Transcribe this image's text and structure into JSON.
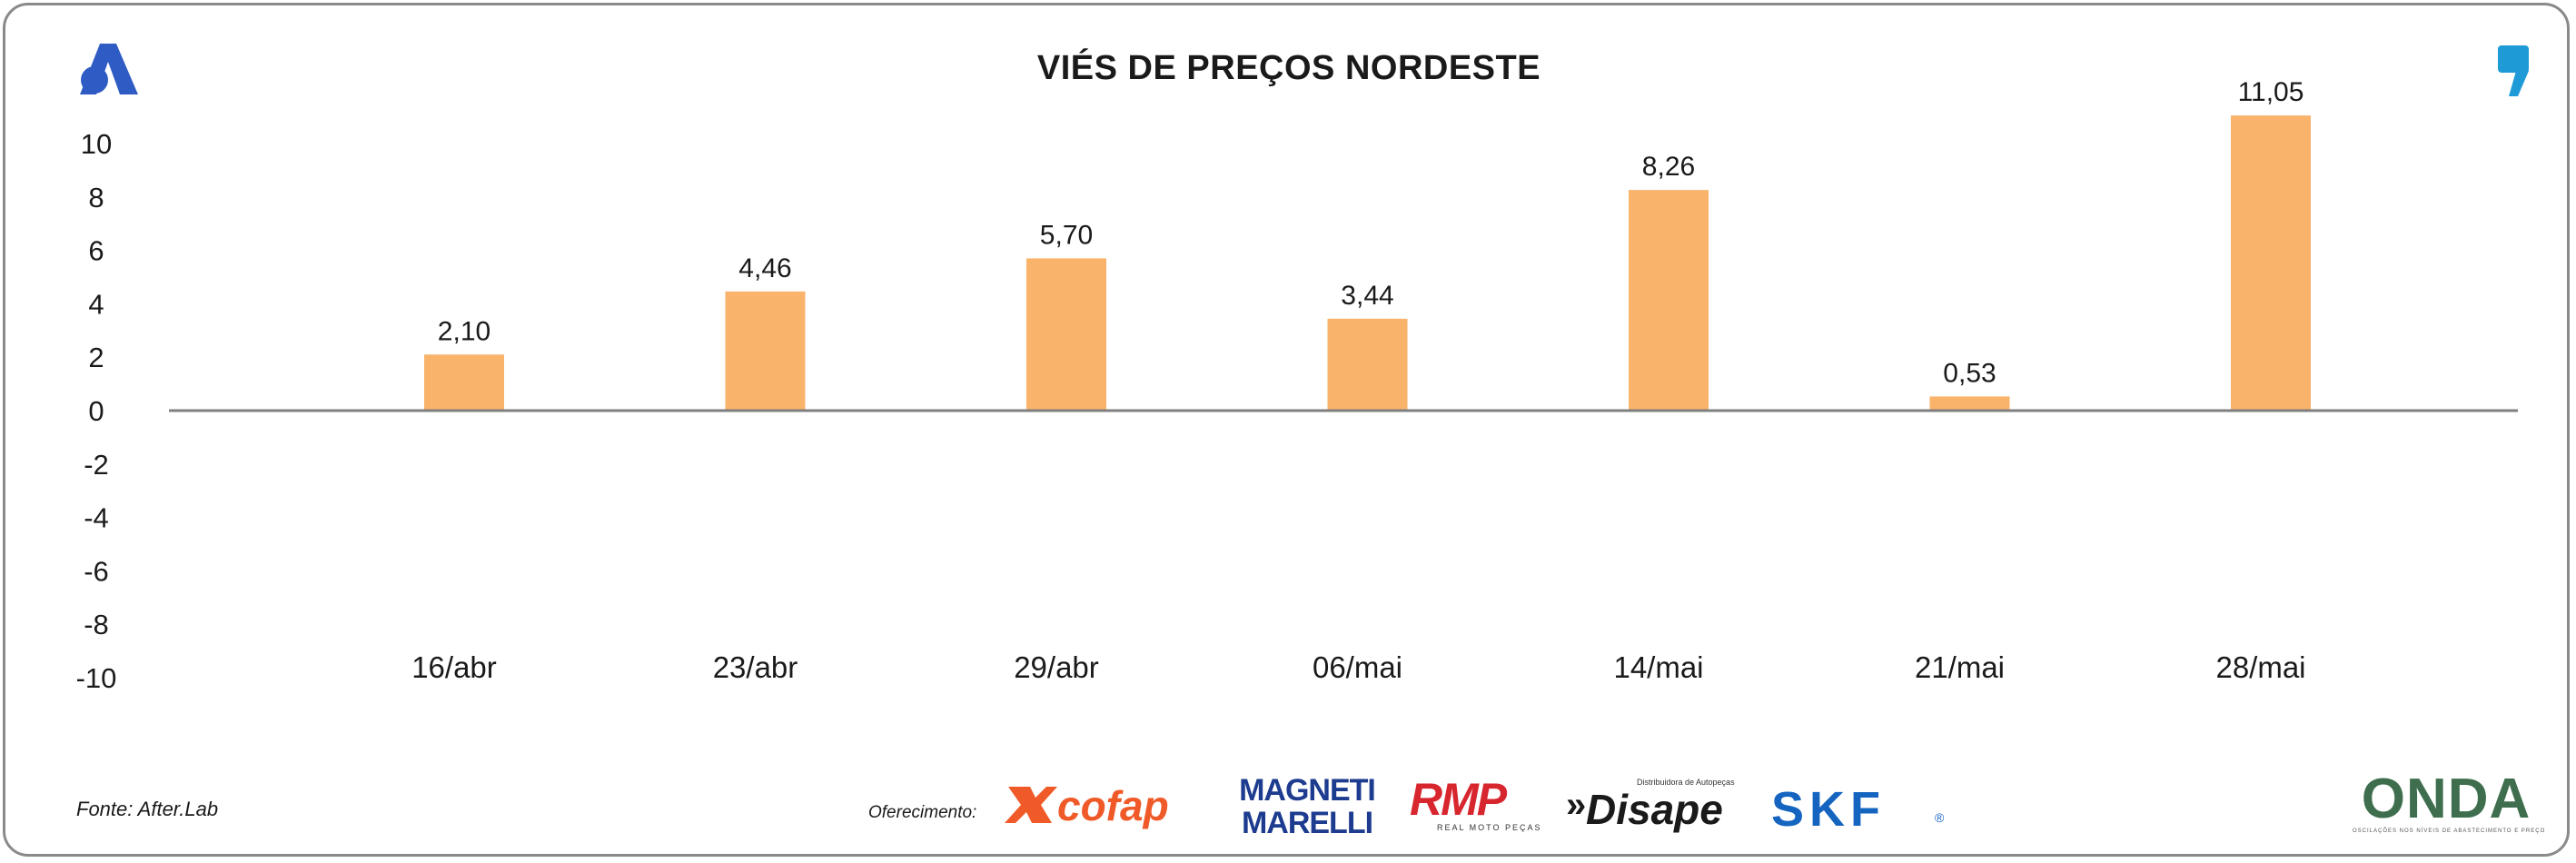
{
  "title": "VIÉS DE PREÇOS NORDESTE",
  "source": "Fonte: After.Lab",
  "sponsor_label": "Oferecimento:",
  "logos": {
    "cofap": "cofap",
    "magneti_top": "MAGNETI",
    "magneti_bottom": "MARELLI",
    "rmp": "RMP",
    "rmp_sub": "REAL MOTO PEÇAS",
    "disape": "Disape",
    "disape_sub": "Distribuidora de Autopeças",
    "skf": "SKF",
    "onda": "ONDA",
    "onda_sub": "OSCILAÇÕES NOS NÍVEIS DE ABASTECIMENTO E PREÇO"
  },
  "colors": {
    "bar": "#F9B36B",
    "axis": "#7f7f7f",
    "text": "#1a1a1a",
    "brand_blue": "#2F5BC4",
    "cofap_orange": "#F05A28",
    "rmp_red": "#D7262E",
    "skf_blue": "#1565C0"
  },
  "chart_data": {
    "type": "bar",
    "categories": [
      "16/abr",
      "23/abr",
      "29/abr",
      "06/mai",
      "14/mai",
      "21/mai",
      "28/mai"
    ],
    "values": [
      2.1,
      4.46,
      5.7,
      3.44,
      8.26,
      0.53,
      11.05
    ],
    "value_labels": [
      "2,10",
      "4,46",
      "5,70",
      "3,44",
      "8,26",
      "0,53",
      "11,05"
    ],
    "ylim": [
      -10,
      10
    ],
    "yticks": [
      "10",
      "8",
      "6",
      "4",
      "2",
      "0",
      "-2",
      "-4",
      "-6",
      "-8",
      "-10"
    ],
    "ytick_values": [
      10,
      8,
      6,
      4,
      2,
      0,
      -2,
      -4,
      -6,
      -8,
      -10
    ],
    "title": "VIÉS DE PREÇOS NORDESTE",
    "xlabel": "",
    "ylabel": "",
    "grid": false,
    "legend": "none"
  }
}
